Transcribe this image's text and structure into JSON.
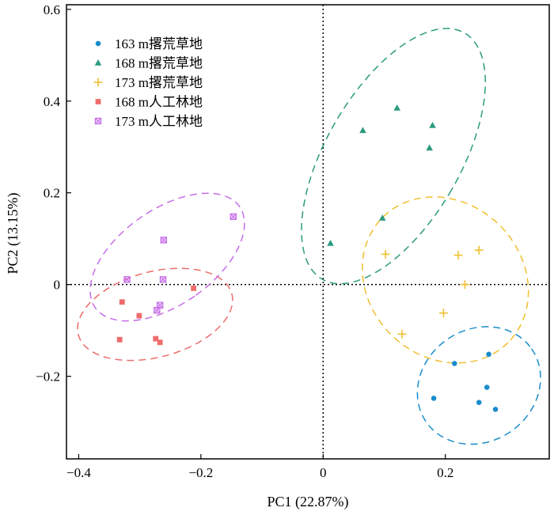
{
  "chart_data": {
    "type": "scatter",
    "xlabel": "PC1 (22.87%)",
    "ylabel": "PC2 (13.15%)",
    "xlim": [
      -0.42,
      0.37
    ],
    "ylim": [
      -0.38,
      0.61
    ],
    "xticks": [
      -0.4,
      -0.2,
      0,
      0.2
    ],
    "yticks": [
      -0.2,
      0,
      0.2,
      0.4,
      0.6
    ],
    "xtick_labels": [
      "−0.4",
      "−0.2",
      "0",
      "0.2"
    ],
    "ytick_labels": [
      "−0.2",
      "0",
      "0.2",
      "0.4",
      "0.6"
    ],
    "reference_lines": {
      "x": 0,
      "y": 0,
      "style": "dotted"
    },
    "legend_position": "top-left",
    "series": [
      {
        "name": "163 m撂荒草地",
        "color": "#1a8ccc",
        "marker": "circle",
        "points": [
          [
            0.215,
            -0.172
          ],
          [
            0.271,
            -0.152
          ],
          [
            0.181,
            -0.248
          ],
          [
            0.268,
            -0.224
          ],
          [
            0.255,
            -0.257
          ],
          [
            0.282,
            -0.272
          ]
        ],
        "ellipse": {
          "cx": 0.255,
          "cy": -0.22,
          "rx": 0.105,
          "ry": 0.122,
          "angle": -35
        }
      },
      {
        "name": "168 m撂荒草地",
        "color": "#2c9b80",
        "marker": "triangle",
        "points": [
          [
            0.121,
            0.385
          ],
          [
            0.065,
            0.336
          ],
          [
            0.179,
            0.347
          ],
          [
            0.174,
            0.298
          ],
          [
            0.097,
            0.145
          ],
          [
            0.012,
            0.09
          ]
        ],
        "ellipse": {
          "cx": 0.115,
          "cy": 0.28,
          "rx": 0.11,
          "ry": 0.31,
          "angle": 30
        }
      },
      {
        "name": "173 m撂荒草地",
        "color": "#f0c030",
        "marker": "plus",
        "points": [
          [
            0.102,
            0.066
          ],
          [
            0.221,
            0.064
          ],
          [
            0.255,
            0.075
          ],
          [
            0.232,
            0.0
          ],
          [
            0.197,
            -0.062
          ],
          [
            0.129,
            -0.108
          ]
        ],
        "ellipse": {
          "cx": 0.2,
          "cy": 0.01,
          "rx": 0.145,
          "ry": 0.168,
          "angle": 45
        }
      },
      {
        "name": "168 m人工林地",
        "color": "#ee6c6c",
        "marker": "square",
        "points": [
          [
            -0.212,
            -0.008
          ],
          [
            -0.329,
            -0.038
          ],
          [
            -0.301,
            -0.068
          ],
          [
            -0.274,
            -0.118
          ],
          [
            -0.333,
            -0.12
          ],
          [
            -0.267,
            -0.126
          ]
        ],
        "ellipse": {
          "cx": -0.275,
          "cy": -0.065,
          "rx": 0.13,
          "ry": 0.093,
          "angle": -15
        }
      },
      {
        "name": "173 m人工林地",
        "color": "#c66ee8",
        "marker": "square-x",
        "points": [
          [
            -0.147,
            0.148
          ],
          [
            -0.261,
            0.097
          ],
          [
            -0.321,
            0.011
          ],
          [
            -0.262,
            0.011
          ],
          [
            -0.267,
            -0.045
          ],
          [
            -0.272,
            -0.056
          ]
        ],
        "ellipse": {
          "cx": -0.255,
          "cy": 0.06,
          "rx": 0.078,
          "ry": 0.192,
          "angle": 55
        }
      }
    ]
  }
}
